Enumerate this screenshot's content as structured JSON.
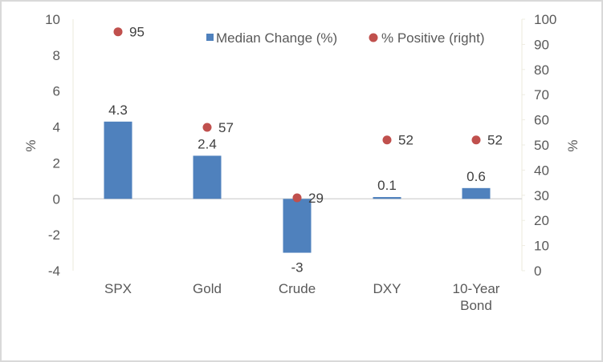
{
  "chart_data": {
    "type": "bar",
    "title": "",
    "categories": [
      "SPX",
      "Gold",
      "Crude",
      "DXY",
      "10-Year Bond"
    ],
    "category_lines": [
      [
        "SPX"
      ],
      [
        "Gold"
      ],
      [
        "Crude"
      ],
      [
        "DXY"
      ],
      [
        "10-Year",
        "Bond"
      ]
    ],
    "series": [
      {
        "name": "Median Change (%)",
        "type": "bar",
        "axis": "left",
        "color": "#4f81bd",
        "values": [
          4.3,
          2.4,
          -3,
          0.1,
          0.6
        ],
        "labels": [
          "4.3",
          "2.4",
          "-3",
          "0.1",
          "0.6"
        ]
      },
      {
        "name": "% Positive (right)",
        "type": "scatter",
        "axis": "right",
        "color": "#c0504d",
        "values": [
          95,
          57,
          29,
          52,
          52
        ],
        "labels": [
          "95",
          "57",
          "29",
          "52",
          "52"
        ]
      }
    ],
    "y_left": {
      "label": "%",
      "range": [
        -4,
        10
      ],
      "ticks": [
        "10",
        "8",
        "6",
        "4",
        "2",
        "0",
        "-2",
        "-4"
      ],
      "tick_values": [
        10,
        8,
        6,
        4,
        2,
        0,
        -2,
        -4
      ]
    },
    "y_right": {
      "label": "%",
      "range": [
        0,
        100
      ],
      "ticks": [
        "100",
        "90",
        "80",
        "70",
        "60",
        "50",
        "40",
        "30",
        "20",
        "10",
        "0"
      ],
      "tick_values": [
        100,
        90,
        80,
        70,
        60,
        50,
        40,
        30,
        20,
        10,
        0
      ]
    },
    "legend": {
      "position": "top-right",
      "items": [
        "Median Change (%)",
        "% Positive (right)"
      ]
    },
    "grid": false,
    "colors": {
      "bar": "#4f81bd",
      "marker": "#c0504d",
      "axis_line": "#eeece1",
      "zero_line": "#d9d9d9",
      "text": "#595959"
    }
  }
}
